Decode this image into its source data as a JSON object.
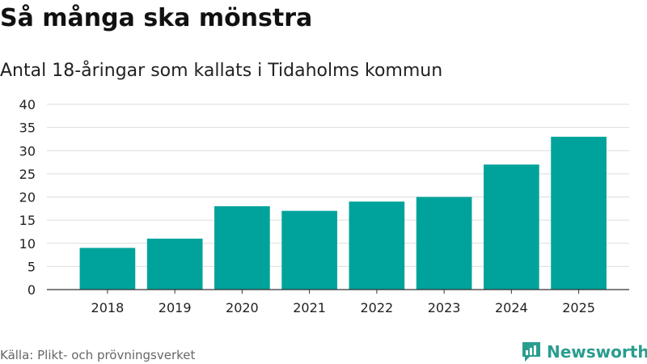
{
  "header": {
    "title": "Så många ska mönstra",
    "subtitle": "Antal 18-åringar som kallats i Tidaholms kommun"
  },
  "footer": {
    "source": "Källa: Plikt- och prövningsverket",
    "brand": "Newsworthy"
  },
  "colors": {
    "bar": "#00a39b",
    "brand": "#2a9d8f",
    "grid": "#dddddd",
    "axis": "#333333"
  },
  "chart_data": {
    "type": "bar",
    "categories": [
      "2018",
      "2019",
      "2020",
      "2021",
      "2022",
      "2023",
      "2024",
      "2025"
    ],
    "values": [
      9,
      11,
      18,
      17,
      19,
      20,
      27,
      33
    ],
    "title": "Så många ska mönstra",
    "subtitle": "Antal 18-åringar som kallats i Tidaholms kommun",
    "xlabel": "",
    "ylabel": "",
    "ylim": [
      0,
      40
    ],
    "yticks": [
      0,
      5,
      10,
      15,
      20,
      25,
      30,
      35,
      40
    ],
    "grid": true,
    "legend": "none"
  }
}
